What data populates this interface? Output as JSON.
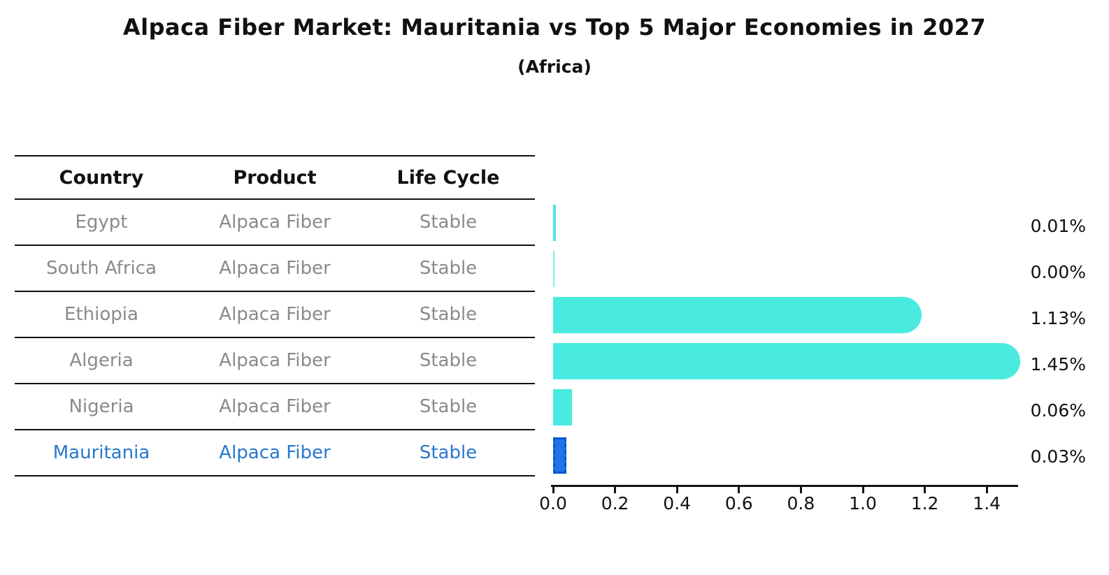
{
  "title": "Alpaca Fiber Market: Mauritania vs Top 5 Major Economies in 2027",
  "subtitle": "(Africa)",
  "table": {
    "headers": [
      "Country",
      "Product",
      "Life Cycle"
    ],
    "rows": [
      {
        "country": "Egypt",
        "product": "Alpaca Fiber",
        "life_cycle": "Stable",
        "highlighted": false
      },
      {
        "country": "South Africa",
        "product": "Alpaca Fiber",
        "life_cycle": "Stable",
        "highlighted": false
      },
      {
        "country": "Ethiopia",
        "product": "Alpaca Fiber",
        "life_cycle": "Stable",
        "highlighted": false
      },
      {
        "country": "Algeria",
        "product": "Alpaca Fiber",
        "life_cycle": "Stable",
        "highlighted": false
      },
      {
        "country": "Nigeria",
        "product": "Alpaca Fiber",
        "life_cycle": "Stable",
        "highlighted": false
      },
      {
        "country": "Mauritania",
        "product": "Alpaca Fiber",
        "life_cycle": "Stable",
        "highlighted": true
      }
    ]
  },
  "chart_data": {
    "type": "bar",
    "orientation": "horizontal",
    "title": "Alpaca Fiber Market: Mauritania vs Top 5 Major Economies in 2027",
    "subtitle": "(Africa)",
    "categories": [
      "Egypt",
      "South Africa",
      "Ethiopia",
      "Algeria",
      "Nigeria",
      "Mauritania"
    ],
    "values": [
      0.01,
      0.0,
      1.13,
      1.45,
      0.06,
      0.03
    ],
    "value_labels": [
      "0.01%",
      "0.00%",
      "1.13%",
      "1.45%",
      "0.06%",
      "0.03%"
    ],
    "xlabel": "",
    "ylabel": "",
    "xlim": [
      0.0,
      1.5
    ],
    "xticks": [
      0.0,
      0.2,
      0.4,
      0.6,
      0.8,
      1.0,
      1.2,
      1.4
    ],
    "xtick_labels": [
      "0.0",
      "0.2",
      "0.4",
      "0.6",
      "0.8",
      "1.0",
      "1.2",
      "1.4"
    ],
    "grid": false,
    "legend": false,
    "bar_color": "#49EBE1",
    "highlight_bar_color": "#2273E8",
    "highlight_bar_edge_color": "#0a55cc",
    "highlight_text_color": "#2878CE",
    "muted_text_color": "#8a8a8a",
    "axis_color": "#111111"
  }
}
